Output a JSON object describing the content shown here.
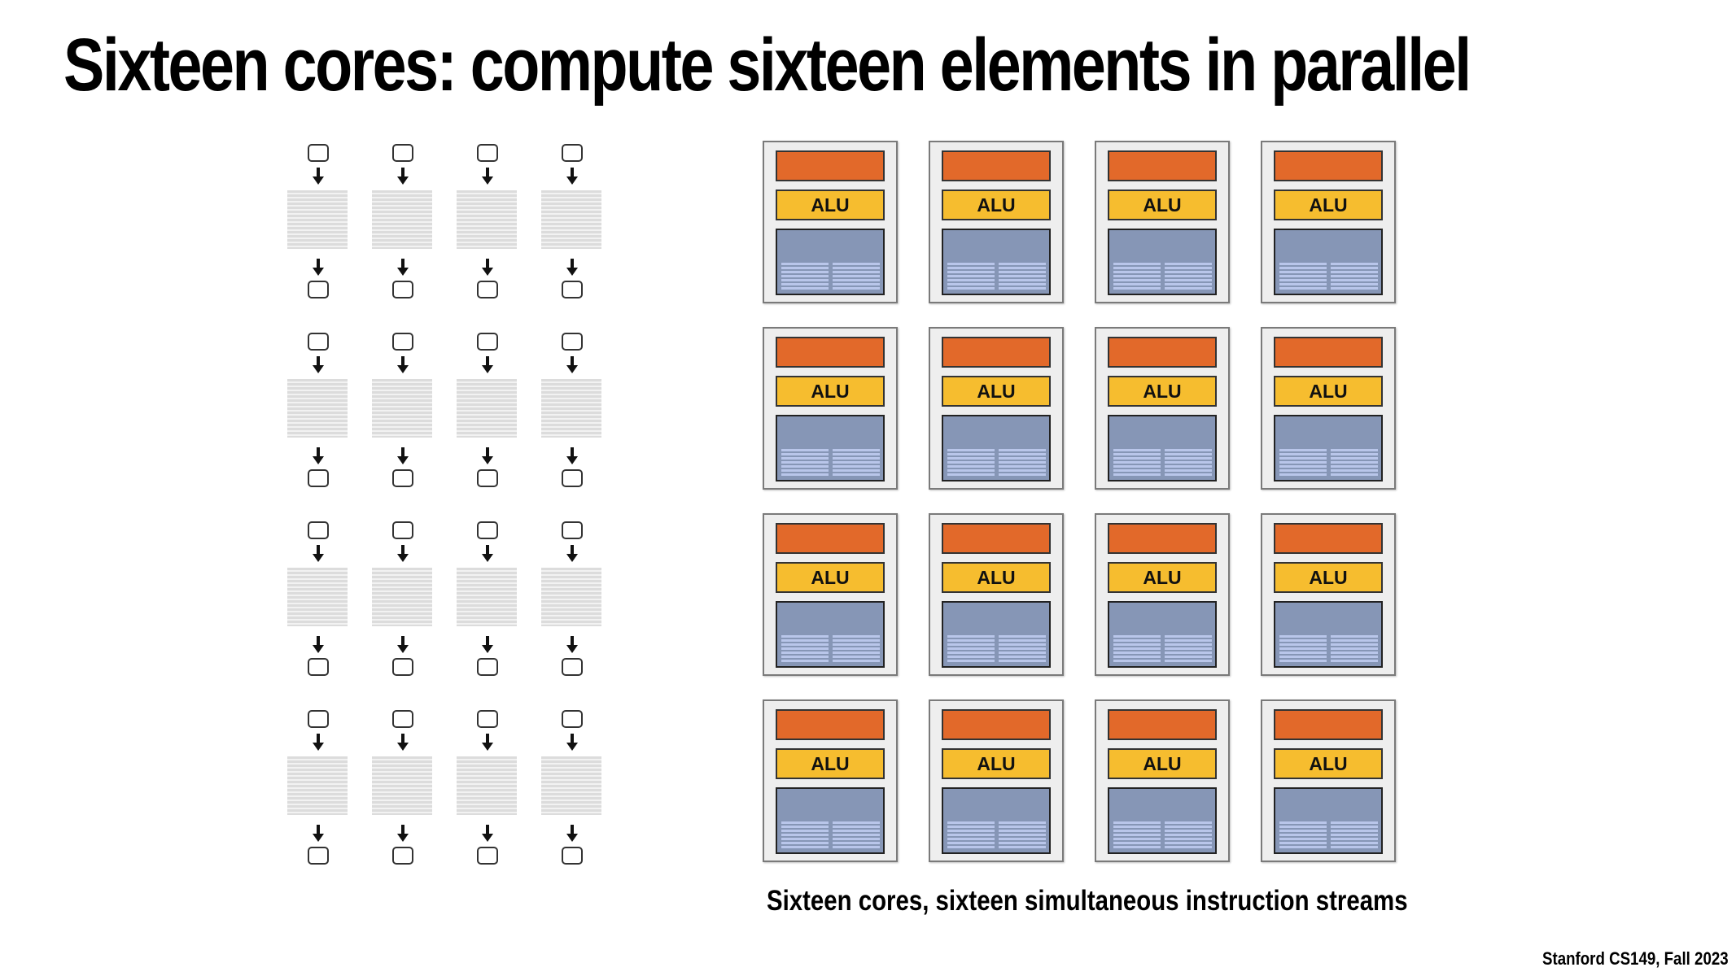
{
  "slide": {
    "title": "Sixteen cores: compute sixteen elements in parallel",
    "caption": "Sixteen cores, sixteen simultaneous instruction streams",
    "footer": "Stanford CS149, Fall 2023"
  },
  "instruction_streams": {
    "rows": 4,
    "columns": 4
  },
  "cores": {
    "rows": 4,
    "columns": 4,
    "alu_label": "ALU"
  },
  "colors": {
    "fetch_decode": "#e2692a",
    "alu": "#f6bd2f",
    "execution_context": "#8696b6",
    "core_background": "#eeeeee"
  },
  "icons": {
    "arrow": "down-arrow-icon"
  }
}
